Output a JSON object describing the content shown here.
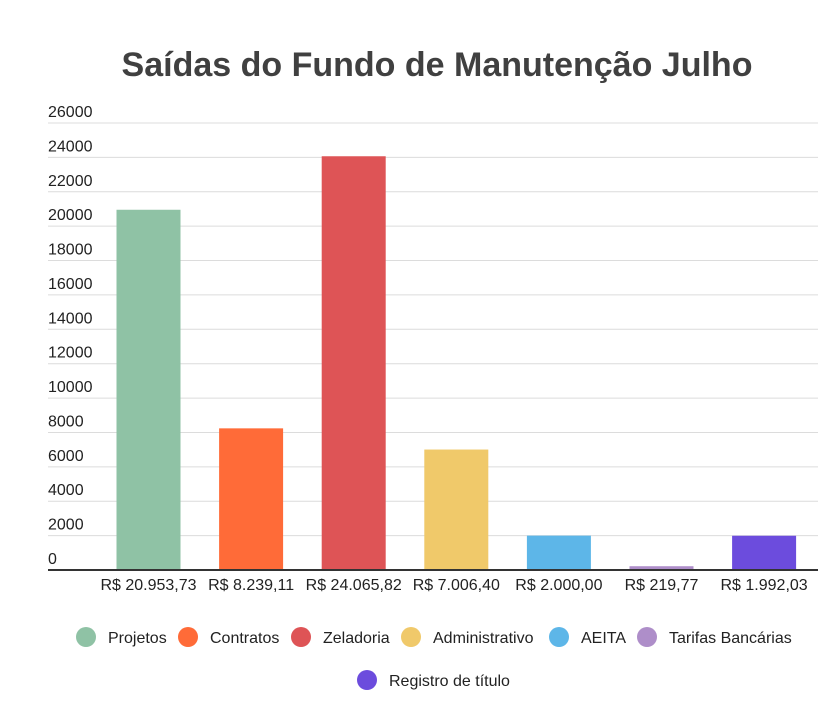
{
  "chart_data": {
    "type": "bar",
    "title": "Saídas do Fundo de Manutenção Julho",
    "xlabel": "",
    "ylabel": "",
    "ylim": [
      0,
      26000
    ],
    "yticks": [
      0,
      2000,
      4000,
      6000,
      8000,
      10000,
      12000,
      14000,
      16000,
      18000,
      20000,
      22000,
      24000,
      26000
    ],
    "grid": true,
    "legend_position": "bottom",
    "categories": [
      "R$ 20.953,73",
      "R$ 8.239,11",
      "R$ 24.065,82",
      "R$ 7.006,40",
      "R$ 2.000,00",
      "R$ 219,77",
      "R$ 1.992,03"
    ],
    "values": [
      20953.73,
      8239.11,
      24065.82,
      7006.4,
      2000.0,
      219.77,
      1992.03
    ],
    "series_names": [
      "Projetos",
      "Contratos",
      "Zeladoria",
      "Administrativo",
      "AEITA",
      "Tarifas Bancárias",
      "Registro de título"
    ],
    "colors": [
      "#8fc2a5",
      "#ff6b38",
      "#de5456",
      "#f0c96a",
      "#5db6e8",
      "#ae8ec9",
      "#6c4cdd"
    ]
  }
}
